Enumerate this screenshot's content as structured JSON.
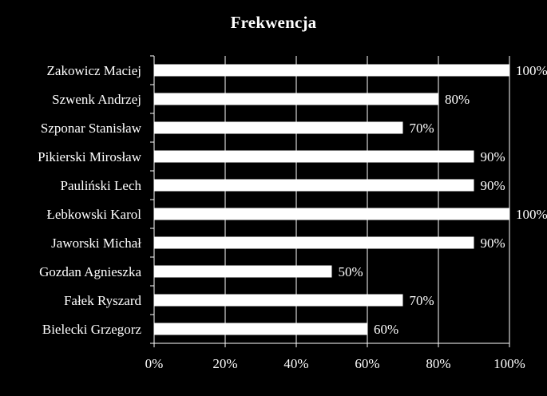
{
  "chart_data": {
    "type": "bar",
    "orientation": "horizontal",
    "title": "Frekwencja",
    "categories": [
      "Zakowicz Maciej",
      "Szwenk Andrzej",
      "Szponar Stanisław",
      "Pikierski Mirosław",
      "Pauliński Lech",
      "Łebkowski Karol",
      "Jaworski Michał",
      "Gozdan Agnieszka",
      "Fałek Ryszard",
      "Bielecki Grzegorz"
    ],
    "values": [
      1.0,
      0.8,
      0.7,
      0.9,
      0.9,
      1.0,
      0.9,
      0.5,
      0.7,
      0.6
    ],
    "data_labels": [
      "100%",
      "80%",
      "70%",
      "90%",
      "90%",
      "100%",
      "90%",
      "50%",
      "70%",
      "60%"
    ],
    "x_ticks": [
      "0%",
      "20%",
      "40%",
      "60%",
      "80%",
      "100%"
    ],
    "xlim": [
      0,
      1
    ],
    "grid": "vertical",
    "legend": "none",
    "colors": {
      "background": "#000000",
      "bar": "#ffffff",
      "text": "#ffffff",
      "grid": "#ffffff"
    }
  }
}
